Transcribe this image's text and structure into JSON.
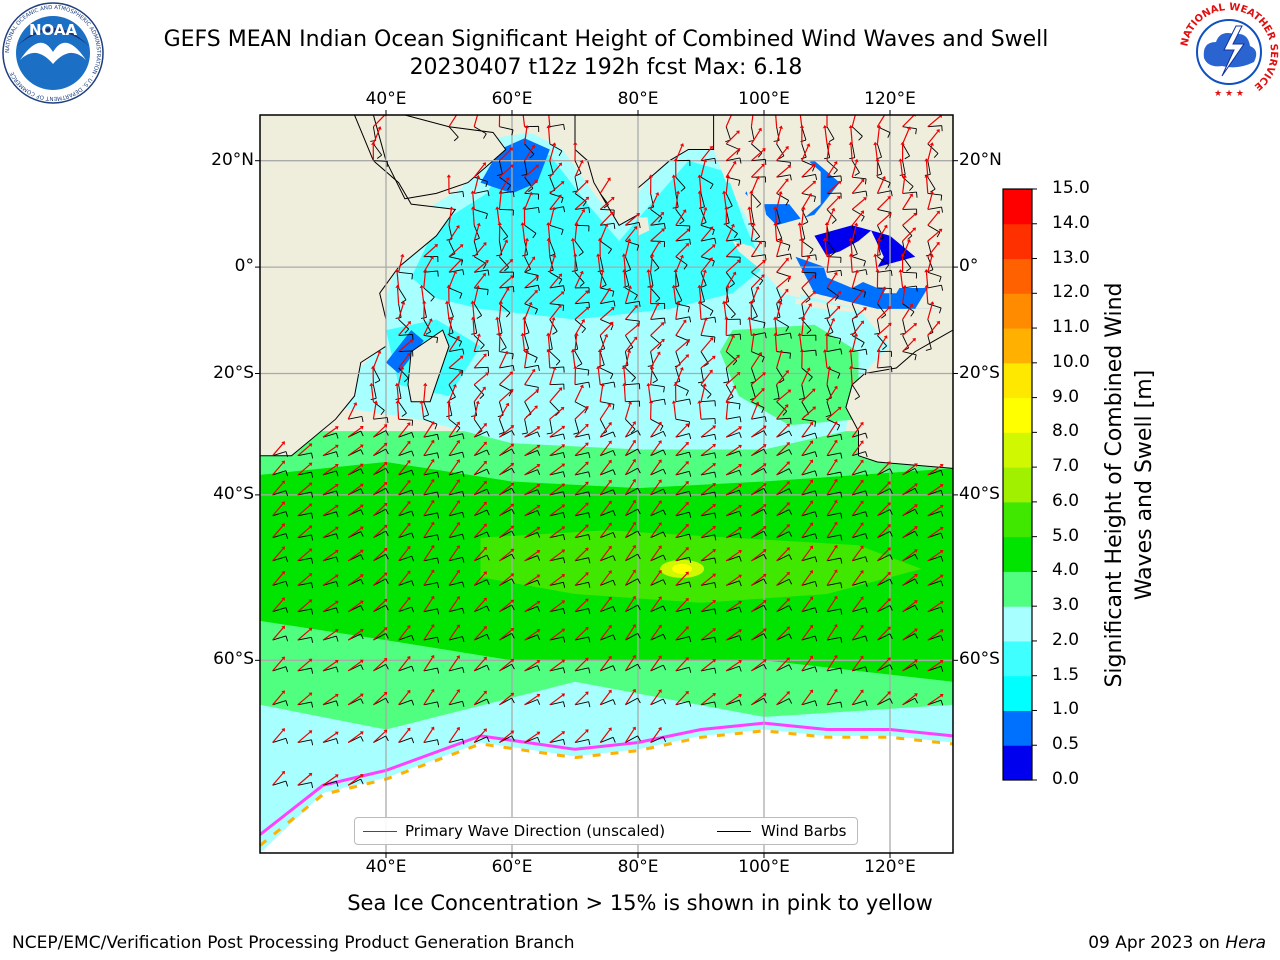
{
  "title": {
    "line1": "GEFS MEAN Indian Ocean Significant Height of Combined Wind Waves and Swell",
    "line2": "20230407 t12z 192h fcst   Max: 6.18"
  },
  "map": {
    "lon_ticks": [
      "40°E",
      "60°E",
      "80°E",
      "100°E",
      "120°E"
    ],
    "lat_ticks": [
      "20°N",
      "0°",
      "20°S",
      "40°S",
      "60°S"
    ],
    "lon_range": [
      20,
      130
    ],
    "lat_range": [
      -74,
      28
    ],
    "lon_tick_values": [
      40,
      60,
      80,
      100,
      120
    ],
    "lat_tick_values": [
      20,
      0,
      -20,
      -40,
      -60
    ]
  },
  "legend": {
    "wave_label": "Primary Wave Direction (unscaled)",
    "barb_label": "Wind Barbs",
    "wave_color": "#ff0000",
    "barb_color": "#000000"
  },
  "colorbar": {
    "label": "Significant Height of Combined Wind Waves and Swell [m]",
    "ticks": [
      "0.0",
      "0.5",
      "1.0",
      "1.5",
      "2.0",
      "3.0",
      "4.0",
      "5.0",
      "6.0",
      "7.0",
      "8.0",
      "9.0",
      "10.0",
      "11.0",
      "12.0",
      "13.0",
      "14.0",
      "15.0"
    ],
    "colors": [
      "#0000ee",
      "#0070ff",
      "#00ffff",
      "#40ffff",
      "#a8ffff",
      "#50ff80",
      "#00e400",
      "#40e800",
      "#a0f000",
      "#d0f800",
      "#ffff00",
      "#ffe800",
      "#ffb000",
      "#ff8c00",
      "#ff6000",
      "#ff3000",
      "#ff0000"
    ]
  },
  "caption": "Sea Ice Concentration > 15% is shown in pink to yellow",
  "footer": {
    "left": "NCEP/EMC/Verification Post Processing Product Generation Branch",
    "right_date": "09 Apr 2023 on ",
    "right_host": "Hera"
  },
  "logos": {
    "noaa_text": "NOAA",
    "noaa_ring": "NATIONAL OCEANIC AND ATMOSPHERIC ADMINISTRATION · U.S. DEPARTMENT OF COMMERCE",
    "nws_ring": "NATIONAL WEATHER SERVICE"
  }
}
